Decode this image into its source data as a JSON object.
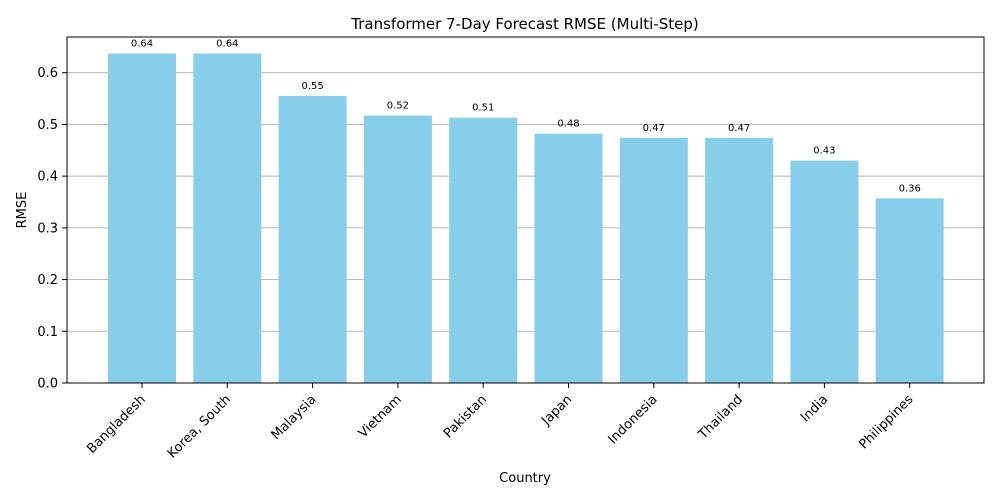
{
  "chart_data": {
    "type": "bar",
    "title": "Transformer 7-Day Forecast RMSE (Multi-Step)",
    "xlabel": "Country",
    "ylabel": "RMSE",
    "categories": [
      "Bangladesh",
      "Korea, South",
      "Malaysia",
      "Vietnam",
      "Pakistan",
      "Japan",
      "Indonesia",
      "Thailand",
      "India",
      "Philippines"
    ],
    "values": [
      0.637,
      0.637,
      0.555,
      0.517,
      0.513,
      0.482,
      0.474,
      0.474,
      0.43,
      0.357
    ],
    "value_labels": [
      "0.64",
      "0.64",
      "0.55",
      "0.52",
      "0.51",
      "0.48",
      "0.47",
      "0.47",
      "0.43",
      "0.36"
    ],
    "ylim": [
      0,
      0.669
    ],
    "yticks": [
      0.0,
      0.1,
      0.2,
      0.3,
      0.4,
      0.5,
      0.6
    ],
    "ytick_labels": [
      "0.0",
      "0.1",
      "0.2",
      "0.3",
      "0.4",
      "0.5",
      "0.6"
    ],
    "grid": "y",
    "bar_color": "#87ceeb",
    "grid_color": "#b0b0b0"
  }
}
